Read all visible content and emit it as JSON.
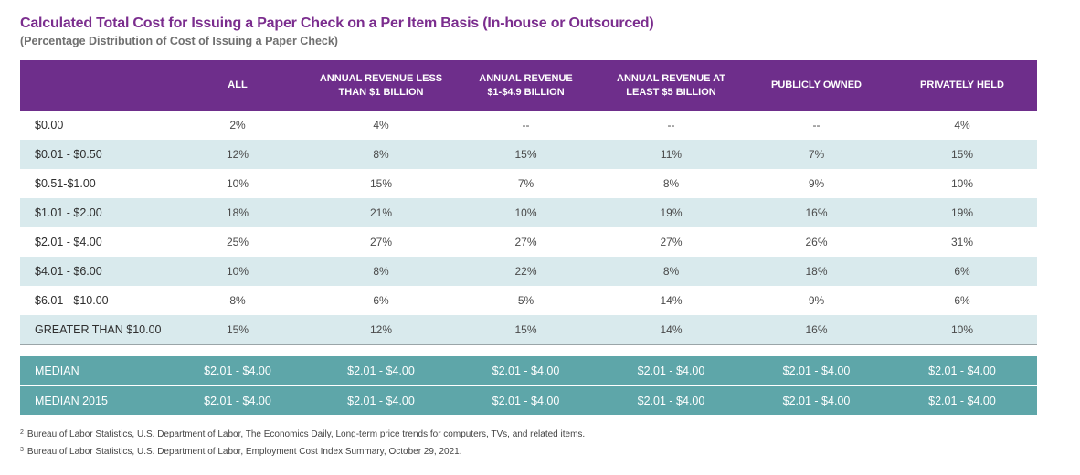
{
  "title": "Calculated Total Cost for Issuing a Paper Check on a Per Item Basis (In-house or Outsourced)",
  "subtitle": "(Percentage Distribution of Cost of Issuing a Paper Check)",
  "colors": {
    "title": "#7b2d8e",
    "header_bg": "#6e2e8b",
    "row_shade": "#d9eaed",
    "median_bg": "#5ea6a9"
  },
  "table": {
    "headers": {
      "all": "ALL",
      "rev_lt1": "ANNUAL REVENUE LESS THAN $1 BILLION",
      "rev_1_49": "ANNUAL REVENUE $1-$4.9 BILLION",
      "rev_ge5": "ANNUAL REVENUE AT LEAST $5 BILLION",
      "public": "PUBLICLY OWNED",
      "private": "PRIVATELY HELD"
    },
    "rows": [
      {
        "label": "$0.00",
        "all": "2%",
        "rev_lt1": "4%",
        "rev_1_49": "--",
        "rev_ge5": "--",
        "public": "--",
        "private": "4%"
      },
      {
        "label": "$0.01 - $0.50",
        "all": "12%",
        "rev_lt1": "8%",
        "rev_1_49": "15%",
        "rev_ge5": "11%",
        "public": "7%",
        "private": "15%"
      },
      {
        "label": "$0.51-$1.00",
        "all": "10%",
        "rev_lt1": "15%",
        "rev_1_49": "7%",
        "rev_ge5": "8%",
        "public": "9%",
        "private": "10%"
      },
      {
        "label": "$1.01 - $2.00",
        "all": "18%",
        "rev_lt1": "21%",
        "rev_1_49": "10%",
        "rev_ge5": "19%",
        "public": "16%",
        "private": "19%"
      },
      {
        "label": "$2.01 - $4.00",
        "all": "25%",
        "rev_lt1": "27%",
        "rev_1_49": "27%",
        "rev_ge5": "27%",
        "public": "26%",
        "private": "31%"
      },
      {
        "label": "$4.01 - $6.00",
        "all": "10%",
        "rev_lt1": "8%",
        "rev_1_49": "22%",
        "rev_ge5": "8%",
        "public": "18%",
        "private": "6%"
      },
      {
        "label": "$6.01 - $10.00",
        "all": "8%",
        "rev_lt1": "6%",
        "rev_1_49": "5%",
        "rev_ge5": "14%",
        "public": "9%",
        "private": "6%"
      },
      {
        "label": "GREATER THAN $10.00",
        "all": "15%",
        "rev_lt1": "12%",
        "rev_1_49": "15%",
        "rev_ge5": "14%",
        "public": "16%",
        "private": "10%"
      }
    ],
    "medians": [
      {
        "label": "MEDIAN",
        "all": "$2.01 - $4.00",
        "rev_lt1": "$2.01 - $4.00",
        "rev_1_49": "$2.01 - $4.00",
        "rev_ge5": "$2.01 - $4.00",
        "public": "$2.01 - $4.00",
        "private": "$2.01 - $4.00"
      },
      {
        "label": "MEDIAN 2015",
        "all": "$2.01 - $4.00",
        "rev_lt1": "$2.01 - $4.00",
        "rev_1_49": "$2.01 - $4.00",
        "rev_ge5": "$2.01 - $4.00",
        "public": "$2.01 - $4.00",
        "private": "$2.01 - $4.00"
      }
    ]
  },
  "footnotes": [
    {
      "mark": "2",
      "text": "Bureau of Labor Statistics, U.S. Department of Labor, The Economics Daily, Long-term price trends for computers, TVs, and related items."
    },
    {
      "mark": "3",
      "text": "Bureau of Labor Statistics, U.S. Department of Labor, Employment Cost Index Summary, October 29, 2021."
    }
  ]
}
